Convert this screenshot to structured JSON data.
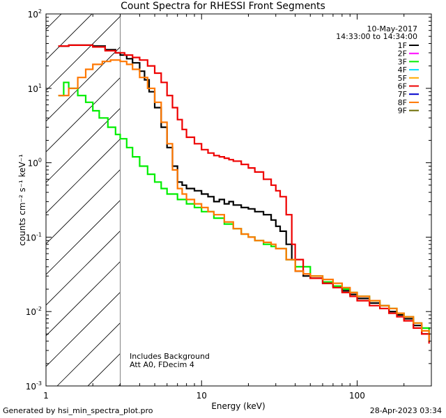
{
  "chart_data": {
    "type": "line",
    "title": "Count Spectra for RHESSI Front Segments",
    "xlabel": "Energy (keV)",
    "ylabel": "counts cm⁻² s⁻¹ keV⁻¹",
    "xscale": "log",
    "yscale": "log",
    "xlim": [
      1,
      300
    ],
    "ylim": [
      0.001,
      100
    ],
    "x_ticks": [
      {
        "value": 1,
        "label": "1"
      },
      {
        "value": 10,
        "label": "10"
      },
      {
        "value": 100,
        "label": "100"
      }
    ],
    "y_ticks": [
      {
        "value": 100,
        "base": "10",
        "exp": "2"
      },
      {
        "value": 10,
        "base": "10",
        "exp": "1"
      },
      {
        "value": 1,
        "base": "10",
        "exp": "0"
      },
      {
        "value": 0.1,
        "base": "10",
        "exp": "-1"
      },
      {
        "value": 0.01,
        "base": "10",
        "exp": "-2"
      },
      {
        "value": 0.001,
        "base": "10",
        "exp": "-3"
      }
    ],
    "date": "10-May-2017",
    "time_range": "14:33:00 to 14:34:00",
    "annotations": [
      "Includes Background",
      "Att A0, FDecim 4"
    ],
    "hatched_region": {
      "x_from": 1,
      "x_to": 3
    },
    "legend": [
      {
        "label": "1F",
        "color": "#000000"
      },
      {
        "label": "2F",
        "color": "#ff00ff"
      },
      {
        "label": "3F",
        "color": "#00ee00"
      },
      {
        "label": "4F",
        "color": "#00ddff"
      },
      {
        "label": "5F",
        "color": "#ffaa00"
      },
      {
        "label": "6F",
        "color": "#ee0000"
      },
      {
        "label": "7F",
        "color": "#0000cc"
      },
      {
        "label": "8F",
        "color": "#ff7700"
      },
      {
        "label": "9F",
        "color": "#6b6b00"
      }
    ],
    "series": [
      {
        "name": "1F",
        "color": "#000000",
        "points": [
          [
            1.2,
            37
          ],
          [
            1.4,
            38
          ],
          [
            1.7,
            38
          ],
          [
            2.0,
            37
          ],
          [
            2.4,
            33
          ],
          [
            2.8,
            30
          ],
          [
            3.0,
            28
          ],
          [
            3.3,
            25
          ],
          [
            3.6,
            22
          ],
          [
            4.0,
            17
          ],
          [
            4.3,
            13
          ],
          [
            4.6,
            9
          ],
          [
            5.0,
            5.5
          ],
          [
            5.5,
            3.0
          ],
          [
            6.0,
            1.6
          ],
          [
            6.5,
            0.9
          ],
          [
            7.0,
            0.55
          ],
          [
            7.5,
            0.5
          ],
          [
            8.0,
            0.45
          ],
          [
            9.0,
            0.42
          ],
          [
            10,
            0.38
          ],
          [
            11,
            0.35
          ],
          [
            12,
            0.3
          ],
          [
            13,
            0.32
          ],
          [
            14,
            0.28
          ],
          [
            15,
            0.3
          ],
          [
            16,
            0.27
          ],
          [
            18,
            0.25
          ],
          [
            20,
            0.24
          ],
          [
            22,
            0.22
          ],
          [
            25,
            0.2
          ],
          [
            28,
            0.17
          ],
          [
            30,
            0.14
          ],
          [
            32,
            0.12
          ],
          [
            35,
            0.08
          ],
          [
            38,
            0.05
          ],
          [
            40,
            0.035
          ],
          [
            45,
            0.03
          ],
          [
            50,
            0.028
          ],
          [
            60,
            0.024
          ],
          [
            70,
            0.022
          ],
          [
            80,
            0.019
          ],
          [
            90,
            0.017
          ],
          [
            100,
            0.015
          ],
          [
            120,
            0.013
          ],
          [
            140,
            0.012
          ],
          [
            160,
            0.01
          ],
          [
            180,
            0.009
          ],
          [
            200,
            0.008
          ],
          [
            230,
            0.0065
          ],
          [
            260,
            0.005
          ],
          [
            290,
            0.004
          ]
        ]
      },
      {
        "name": "3F",
        "color": "#00ee00",
        "points": [
          [
            1.2,
            8
          ],
          [
            1.3,
            12
          ],
          [
            1.4,
            10
          ],
          [
            1.6,
            8
          ],
          [
            1.8,
            6.5
          ],
          [
            2.0,
            5
          ],
          [
            2.2,
            4
          ],
          [
            2.5,
            3
          ],
          [
            2.8,
            2.4
          ],
          [
            3.0,
            2.1
          ],
          [
            3.3,
            1.6
          ],
          [
            3.6,
            1.2
          ],
          [
            4.0,
            0.9
          ],
          [
            4.5,
            0.7
          ],
          [
            5.0,
            0.55
          ],
          [
            5.5,
            0.45
          ],
          [
            6.0,
            0.38
          ],
          [
            7.0,
            0.32
          ],
          [
            8.0,
            0.28
          ],
          [
            9.0,
            0.25
          ],
          [
            10,
            0.22
          ],
          [
            12,
            0.18
          ],
          [
            14,
            0.15
          ],
          [
            16,
            0.13
          ],
          [
            18,
            0.11
          ],
          [
            20,
            0.1
          ],
          [
            22,
            0.09
          ],
          [
            25,
            0.08
          ],
          [
            28,
            0.075
          ],
          [
            30,
            0.07
          ],
          [
            35,
            0.05
          ],
          [
            40,
            0.04
          ],
          [
            50,
            0.03
          ],
          [
            60,
            0.025
          ],
          [
            70,
            0.022
          ],
          [
            80,
            0.02
          ],
          [
            90,
            0.018
          ],
          [
            100,
            0.016
          ],
          [
            120,
            0.014
          ],
          [
            140,
            0.012
          ],
          [
            160,
            0.011
          ],
          [
            180,
            0.0095
          ],
          [
            200,
            0.0085
          ],
          [
            230,
            0.007
          ],
          [
            260,
            0.006
          ],
          [
            290,
            0.005
          ]
        ]
      },
      {
        "name": "6F",
        "color": "#ee0000",
        "points": [
          [
            1.2,
            37
          ],
          [
            1.4,
            38
          ],
          [
            1.7,
            38
          ],
          [
            2.0,
            36
          ],
          [
            2.4,
            32
          ],
          [
            2.8,
            30
          ],
          [
            3.2,
            28
          ],
          [
            3.6,
            26
          ],
          [
            4.0,
            24
          ],
          [
            4.5,
            20
          ],
          [
            5.0,
            16
          ],
          [
            5.5,
            12
          ],
          [
            6.0,
            8
          ],
          [
            6.5,
            5.5
          ],
          [
            7.0,
            3.8
          ],
          [
            7.5,
            2.8
          ],
          [
            8.0,
            2.2
          ],
          [
            9.0,
            1.8
          ],
          [
            10,
            1.5
          ],
          [
            11,
            1.35
          ],
          [
            12,
            1.25
          ],
          [
            13,
            1.2
          ],
          [
            14,
            1.15
          ],
          [
            15,
            1.1
          ],
          [
            16,
            1.05
          ],
          [
            18,
            0.95
          ],
          [
            20,
            0.85
          ],
          [
            22,
            0.75
          ],
          [
            25,
            0.6
          ],
          [
            28,
            0.5
          ],
          [
            30,
            0.42
          ],
          [
            32,
            0.35
          ],
          [
            35,
            0.2
          ],
          [
            38,
            0.08
          ],
          [
            40,
            0.05
          ],
          [
            45,
            0.032
          ],
          [
            50,
            0.028
          ],
          [
            60,
            0.024
          ],
          [
            70,
            0.021
          ],
          [
            80,
            0.018
          ],
          [
            90,
            0.016
          ],
          [
            100,
            0.014
          ],
          [
            120,
            0.012
          ],
          [
            140,
            0.011
          ],
          [
            160,
            0.0095
          ],
          [
            180,
            0.0085
          ],
          [
            200,
            0.0075
          ],
          [
            230,
            0.006
          ],
          [
            260,
            0.005
          ],
          [
            290,
            0.0037
          ]
        ]
      },
      {
        "name": "8F",
        "color": "#ff7700",
        "points": [
          [
            1.2,
            8
          ],
          [
            1.4,
            10
          ],
          [
            1.6,
            14
          ],
          [
            1.8,
            18
          ],
          [
            2.0,
            21
          ],
          [
            2.3,
            23
          ],
          [
            2.6,
            24
          ],
          [
            3.0,
            23
          ],
          [
            3.3,
            21
          ],
          [
            3.6,
            18
          ],
          [
            4.0,
            14
          ],
          [
            4.5,
            10
          ],
          [
            5.0,
            6.5
          ],
          [
            5.5,
            3.5
          ],
          [
            6.0,
            1.8
          ],
          [
            6.5,
            0.8
          ],
          [
            7.0,
            0.45
          ],
          [
            7.5,
            0.38
          ],
          [
            8.0,
            0.32
          ],
          [
            9.0,
            0.28
          ],
          [
            10,
            0.25
          ],
          [
            11,
            0.22
          ],
          [
            12,
            0.2
          ],
          [
            14,
            0.16
          ],
          [
            16,
            0.13
          ],
          [
            18,
            0.11
          ],
          [
            20,
            0.1
          ],
          [
            22,
            0.09
          ],
          [
            25,
            0.085
          ],
          [
            28,
            0.08
          ],
          [
            30,
            0.07
          ],
          [
            35,
            0.05
          ],
          [
            40,
            0.035
          ],
          [
            45,
            0.032
          ],
          [
            50,
            0.03
          ],
          [
            60,
            0.027
          ],
          [
            70,
            0.024
          ],
          [
            80,
            0.021
          ],
          [
            90,
            0.018
          ],
          [
            100,
            0.016
          ],
          [
            120,
            0.014
          ],
          [
            140,
            0.012
          ],
          [
            160,
            0.011
          ],
          [
            180,
            0.0095
          ],
          [
            200,
            0.0085
          ],
          [
            230,
            0.007
          ],
          [
            260,
            0.0055
          ],
          [
            290,
            0.004
          ]
        ]
      }
    ]
  },
  "footer": {
    "generator": "Generated by hsi_min_spectra_plot.pro",
    "timestamp": "28-Apr-2023 03:34"
  }
}
